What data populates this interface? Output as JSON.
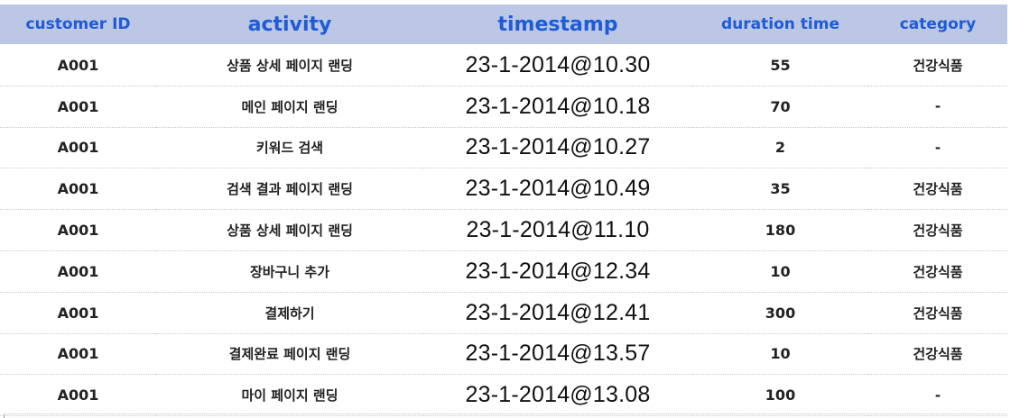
{
  "table": {
    "headers": [
      "customer ID",
      "activity",
      "timestamp",
      "duration time",
      "category"
    ],
    "rows": [
      [
        "A001",
        "상품 상세 페이지 랜딩",
        "23-1-2014@10.30",
        "55",
        "건강식품"
      ],
      [
        "A001",
        "메인 페이지 랜딩",
        "23-1-2014@10.18",
        "70",
        "-"
      ],
      [
        "A001",
        "키워드 검색",
        "23-1-2014@10.27",
        "2",
        "-"
      ],
      [
        "A001",
        "검색 결과 페이지 랜딩",
        "23-1-2014@10.49",
        "35",
        "건강식품"
      ],
      [
        "A001",
        "상품 상세 페이지 랜딩",
        "23-1-2014@11.10",
        "180",
        "건강식품"
      ],
      [
        "A001",
        "장바구니 추가",
        "23-1-2014@12.34",
        "10",
        "건강식품"
      ],
      [
        "A001",
        "결제하기",
        "23-1-2014@12.41",
        "300",
        "건강식품"
      ],
      [
        "A001",
        "결제완료 페이지 랜딩",
        "23-1-2014@13.57",
        "10",
        "건강식품"
      ],
      [
        "A001",
        "마이 페이지 랜딩",
        "23-1-2014@13.08",
        "100",
        "-"
      ]
    ]
  },
  "colors": {
    "header_bg": "#bcc7e6",
    "header_text": "#1f5bd4",
    "body_text": "#222222"
  }
}
